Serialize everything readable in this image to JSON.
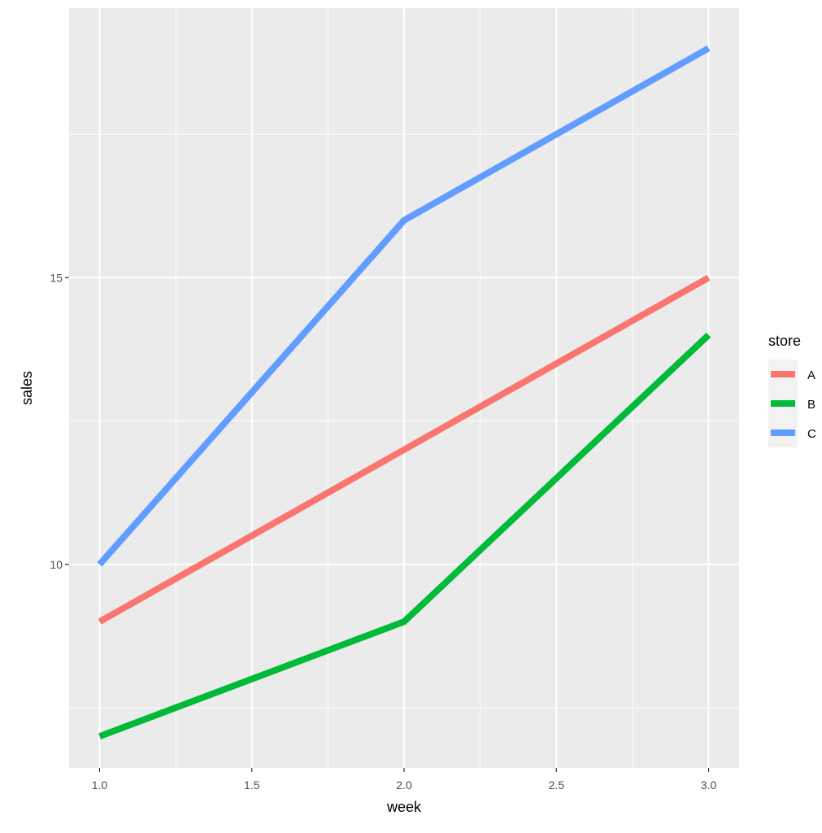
{
  "chart_data": {
    "type": "line",
    "xlabel": "week",
    "ylabel": "sales",
    "x": [
      1,
      2,
      3
    ],
    "xlim": [
      0.9,
      3.1
    ],
    "ylim": [
      6.45,
      19.7
    ],
    "x_ticks": [
      1.0,
      1.5,
      2.0,
      2.5,
      3.0
    ],
    "x_tick_labels": [
      "1.0",
      "1.5",
      "2.0",
      "2.5",
      "3.0"
    ],
    "y_ticks": [
      10,
      15
    ],
    "y_tick_labels": [
      "10",
      "15"
    ],
    "grid": true,
    "legend": {
      "title": "store",
      "position": "right"
    },
    "series": [
      {
        "name": "A",
        "values": [
          9,
          12,
          15
        ],
        "color": "#F8766D"
      },
      {
        "name": "B",
        "values": [
          7,
          9,
          14
        ],
        "color": "#00BA38"
      },
      {
        "name": "C",
        "values": [
          10,
          16,
          19
        ],
        "color": "#619CFF"
      }
    ]
  }
}
